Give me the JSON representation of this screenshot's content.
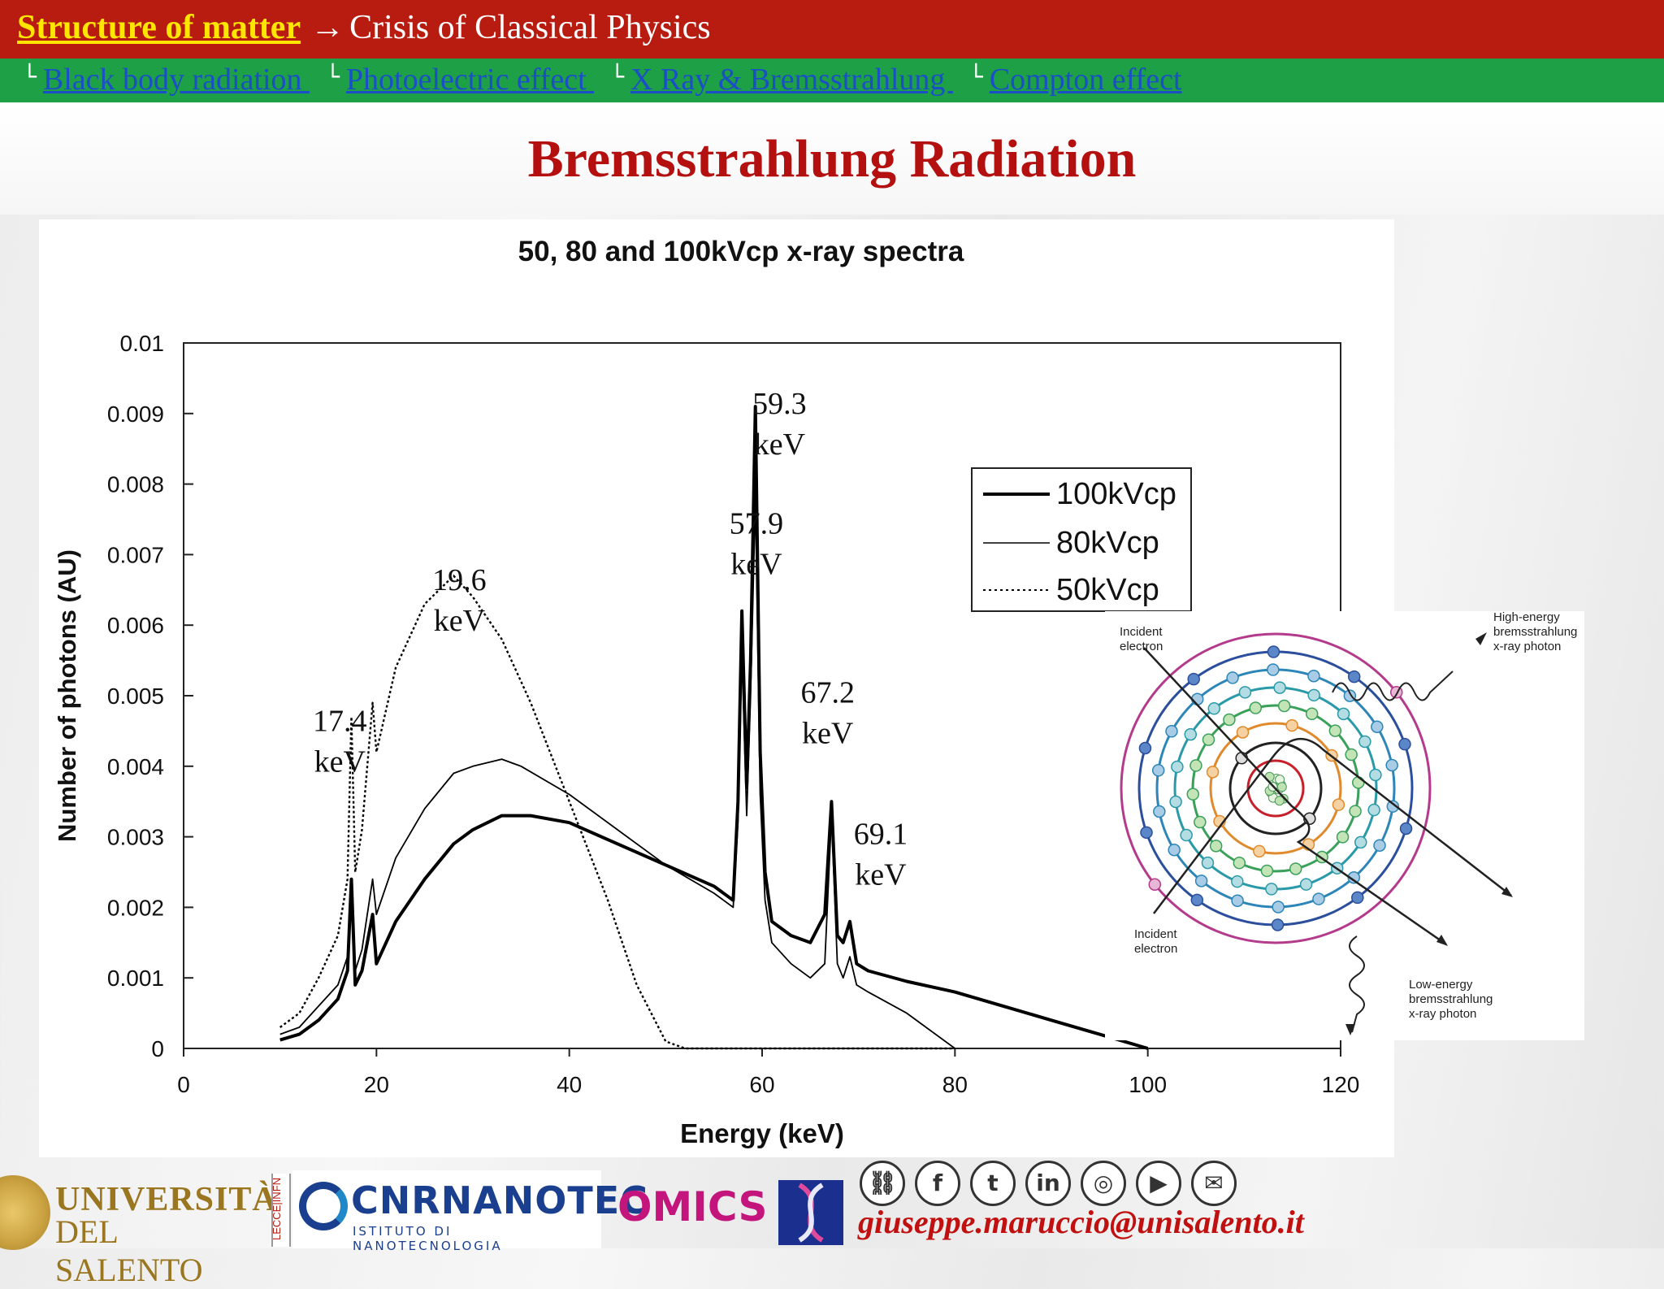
{
  "header": {
    "section": "Structure of matter",
    "arrow": "→",
    "topic": "Crisis of Classical Physics",
    "subtopics": [
      {
        "label": "Black body radiation "
      },
      {
        "label": "Photoelectric effect "
      },
      {
        "label": "X Ray & Bremsstrahlung "
      },
      {
        "label": "Compton effect"
      }
    ],
    "tick": "└"
  },
  "slide": {
    "title": "Bremsstrahlung Radiation"
  },
  "chart_data": {
    "type": "line",
    "title": "50, 80 and 100kVcp x-ray spectra",
    "xlabel": "Energy (keV)",
    "ylabel": "Number of photons (AU)",
    "xlim": [
      0,
      120
    ],
    "ylim": [
      0,
      0.01
    ],
    "xticks": [
      "0",
      "20",
      "40",
      "60",
      "80",
      "100",
      "120"
    ],
    "yticks": [
      "0",
      "0.001",
      "0.002",
      "0.003",
      "0.004",
      "0.005",
      "0.006",
      "0.007",
      "0.008",
      "0.009",
      "0.01"
    ],
    "legend_position": "top-right",
    "series": [
      {
        "name": "100kVcp",
        "style": "thick",
        "x": [
          10,
          12,
          14,
          16,
          17,
          17.4,
          17.8,
          18.5,
          19.6,
          20,
          22,
          25,
          28,
          30,
          33,
          36,
          40,
          45,
          50,
          55,
          57,
          57.5,
          57.9,
          58.4,
          58.8,
          59.3,
          59.8,
          60.3,
          61,
          63,
          65,
          66.5,
          67.2,
          67.8,
          68.4,
          69.1,
          69.8,
          71,
          75,
          80,
          85,
          90,
          95,
          100
        ],
        "y": [
          0.00012,
          0.0002,
          0.0004,
          0.0007,
          0.0011,
          0.0024,
          0.0009,
          0.0011,
          0.0019,
          0.0012,
          0.0018,
          0.0024,
          0.0029,
          0.0031,
          0.0033,
          0.0033,
          0.0032,
          0.0029,
          0.0026,
          0.0023,
          0.0021,
          0.0035,
          0.0062,
          0.0037,
          0.0055,
          0.0091,
          0.0042,
          0.0025,
          0.0018,
          0.0016,
          0.0015,
          0.0019,
          0.0035,
          0.0016,
          0.0015,
          0.0018,
          0.0012,
          0.0011,
          0.00095,
          0.0008,
          0.0006,
          0.0004,
          0.0002,
          0.0
        ]
      },
      {
        "name": "80kVcp",
        "style": "thin",
        "x": [
          10,
          12,
          14,
          16,
          17,
          17.4,
          17.8,
          18.5,
          19.6,
          20,
          22,
          25,
          28,
          30,
          33,
          35,
          40,
          45,
          50,
          55,
          57,
          57.5,
          57.9,
          58.4,
          58.8,
          59.3,
          59.8,
          60.3,
          61,
          63,
          65,
          66.5,
          67.2,
          67.8,
          68.4,
          69.1,
          69.8,
          71,
          75,
          80
        ],
        "y": [
          0.0002,
          0.0003,
          0.0006,
          0.0009,
          0.0013,
          0.0023,
          0.0011,
          0.0014,
          0.0024,
          0.0019,
          0.0027,
          0.0034,
          0.0039,
          0.004,
          0.0041,
          0.004,
          0.0036,
          0.0031,
          0.0026,
          0.0022,
          0.002,
          0.0032,
          0.0056,
          0.0033,
          0.005,
          0.0078,
          0.0036,
          0.0021,
          0.0015,
          0.0012,
          0.001,
          0.0012,
          0.0033,
          0.0012,
          0.001,
          0.0013,
          0.0009,
          0.0008,
          0.0005,
          0.0
        ]
      },
      {
        "name": "50kVcp",
        "style": "dotted",
        "x": [
          10,
          12,
          14,
          16,
          17,
          17.4,
          17.8,
          18.5,
          19.6,
          20,
          22,
          25,
          28,
          30,
          33,
          36,
          40,
          44,
          47,
          50,
          52,
          60,
          70,
          80
        ],
        "y": [
          0.0003,
          0.0005,
          0.001,
          0.0016,
          0.0024,
          0.0047,
          0.0025,
          0.0031,
          0.0049,
          0.0042,
          0.0054,
          0.0063,
          0.0067,
          0.0064,
          0.0058,
          0.0049,
          0.0035,
          0.0021,
          0.0009,
          0.0001,
          0.0,
          0.0,
          0.0,
          0.0
        ]
      }
    ],
    "annotations": [
      {
        "line1": "17.4",
        "line2": "keV"
      },
      {
        "line1": "19.6",
        "line2": "keV"
      },
      {
        "line1": "57.9",
        "line2": "keV"
      },
      {
        "line1": "59.3",
        "line2": "keV"
      },
      {
        "line1": "67.2",
        "line2": "keV"
      },
      {
        "line1": "69.1",
        "line2": "keV"
      }
    ]
  },
  "diagram": {
    "labels": [
      {
        "lines": [
          "Incident",
          "electron"
        ]
      },
      {
        "lines": [
          "Incident",
          "electron"
        ]
      },
      {
        "lines": [
          "High-energy",
          "bremsstrahlung",
          "x-ray photon"
        ]
      },
      {
        "lines": [
          "Low-energy",
          "bremsstrahlung",
          "x-ray photon"
        ]
      }
    ]
  },
  "footer": {
    "email": "giuseppe.maruccio@unisalento.it",
    "logos": {
      "unisalento_line1": "UNIVERSITÀ",
      "unisalento_line2": "DEL SALENTO",
      "lecce": "LECCE|INFN",
      "cnr_name": "CNRNANOTEC",
      "cnr_sub": "ISTITUTO DI NANOTECNOLOGIA",
      "omics": "OMICS"
    },
    "social": [
      {
        "icon": "link-icon",
        "glyph": "⛓"
      },
      {
        "icon": "facebook-icon",
        "glyph": "f"
      },
      {
        "icon": "twitter-icon",
        "glyph": "t"
      },
      {
        "icon": "linkedin-icon",
        "glyph": "in"
      },
      {
        "icon": "instagram-icon",
        "glyph": "◎"
      },
      {
        "icon": "youtube-icon",
        "glyph": "▶"
      },
      {
        "icon": "mail-icon",
        "glyph": "✉"
      }
    ]
  },
  "colors": {
    "top_bar": "#b81c10",
    "sub_bar": "#1ea046",
    "section_link": "#ffe600",
    "sub_link": "#1a4fc7",
    "title": "#b41010"
  }
}
